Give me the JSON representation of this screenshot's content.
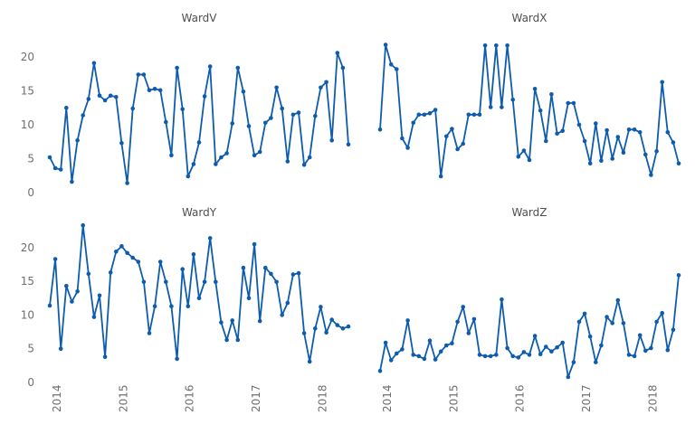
{
  "figure": {
    "background_color": "#ffffff",
    "description": "2x2 grid of small-multiple line charts of monthly counts per ward"
  },
  "style": {
    "line_color": "#0d5cae",
    "marker_color": "#0d5cae",
    "tick_label_color": "#6f6f6f",
    "title_color": "#4f4f4f"
  },
  "chart_data": [
    {
      "type": "line",
      "title": "WardV",
      "x_range": [
        "2013-12",
        "2018-06"
      ],
      "x_tick_labels": [],
      "y_tick_labels": [
        "0",
        "5",
        "10",
        "15",
        "20"
      ],
      "ylim": [
        0,
        23
      ],
      "grid": false,
      "legend": "none",
      "values": [
        5.2,
        3.6,
        3.4,
        12.5,
        1.6,
        7.7,
        11.4,
        13.8,
        19.1,
        14.3,
        13.6,
        14.3,
        14.1,
        7.3,
        1.4,
        12.4,
        17.4,
        17.4,
        15.1,
        15.3,
        15.1,
        10.4,
        5.5,
        18.4,
        12.3,
        2.4,
        4.2,
        7.4,
        14.2,
        18.6,
        4.2,
        5.2,
        5.8,
        10.2,
        18.4,
        14.9,
        9.8,
        5.5,
        6.0,
        10.3,
        11.0,
        15.5,
        12.4,
        4.6,
        11.5,
        11.8,
        4.1,
        5.2,
        11.3,
        15.5,
        16.3,
        7.7,
        20.6,
        18.4,
        7.1
      ]
    },
    {
      "type": "line",
      "title": "WardX",
      "x_range": [
        "2013-12",
        "2018-06"
      ],
      "x_tick_labels": [],
      "y_tick_labels": [],
      "ylim": [
        0,
        23
      ],
      "grid": false,
      "legend": "none",
      "values": [
        9.3,
        21.8,
        18.9,
        18.2,
        8.0,
        6.6,
        10.3,
        11.5,
        11.5,
        11.7,
        12.2,
        2.4,
        8.3,
        9.4,
        6.4,
        7.2,
        11.5,
        11.5,
        11.5,
        21.7,
        12.6,
        21.7,
        12.6,
        21.7,
        13.7,
        5.3,
        6.2,
        4.8,
        15.3,
        12.1,
        7.6,
        14.5,
        8.7,
        9.1,
        13.2,
        13.2,
        10.0,
        7.6,
        4.3,
        10.2,
        4.7,
        9.2,
        5.0,
        8.2,
        5.9,
        9.3,
        9.3,
        8.9,
        5.6,
        2.6,
        6.1,
        16.3,
        8.9,
        7.4,
        4.3
      ]
    },
    {
      "type": "line",
      "title": "WardY",
      "x_range": [
        "2013-12",
        "2018-06"
      ],
      "x_tick_labels": [
        "2014",
        "2015",
        "2016",
        "2017",
        "2018"
      ],
      "y_tick_labels": [
        "0",
        "5",
        "10",
        "15",
        "20"
      ],
      "ylim": [
        0,
        24
      ],
      "grid": false,
      "legend": "none",
      "values": [
        11.4,
        18.3,
        5.0,
        14.3,
        12.0,
        13.5,
        23.3,
        16.1,
        9.7,
        12.9,
        3.8,
        16.3,
        19.4,
        20.2,
        19.2,
        18.5,
        17.9,
        14.9,
        7.3,
        11.3,
        17.9,
        14.9,
        11.3,
        3.5,
        16.8,
        11.3,
        19.0,
        12.5,
        14.9,
        21.4,
        14.9,
        8.9,
        6.3,
        9.2,
        6.3,
        17.0,
        12.5,
        20.5,
        9.1,
        17.0,
        16.1,
        14.9,
        10.0,
        11.8,
        16.0,
        16.2,
        7.3,
        3.1,
        8.0,
        11.2,
        7.4,
        9.3,
        8.5,
        8.0,
        8.3
      ]
    },
    {
      "type": "line",
      "title": "WardZ",
      "x_range": [
        "2013-12",
        "2018-06"
      ],
      "x_tick_labels": [
        "2014",
        "2015",
        "2016",
        "2017",
        "2018"
      ],
      "y_tick_labels": [],
      "ylim": [
        0,
        24
      ],
      "grid": false,
      "legend": "none",
      "values": [
        1.7,
        5.9,
        3.3,
        4.3,
        4.9,
        9.2,
        4.1,
        3.9,
        3.5,
        6.2,
        3.4,
        4.6,
        5.5,
        5.8,
        9.0,
        11.2,
        7.3,
        9.4,
        4.1,
        3.9,
        3.9,
        4.1,
        12.3,
        5.1,
        3.9,
        3.7,
        4.5,
        4.1,
        6.9,
        4.2,
        5.3,
        4.6,
        5.2,
        5.9,
        0.8,
        3.0,
        9.0,
        10.2,
        6.8,
        3.0,
        5.5,
        9.7,
        8.8,
        12.2,
        8.8,
        4.1,
        3.9,
        7.0,
        4.7,
        5.1,
        9.0,
        10.3,
        4.8,
        7.8,
        15.9
      ]
    }
  ]
}
